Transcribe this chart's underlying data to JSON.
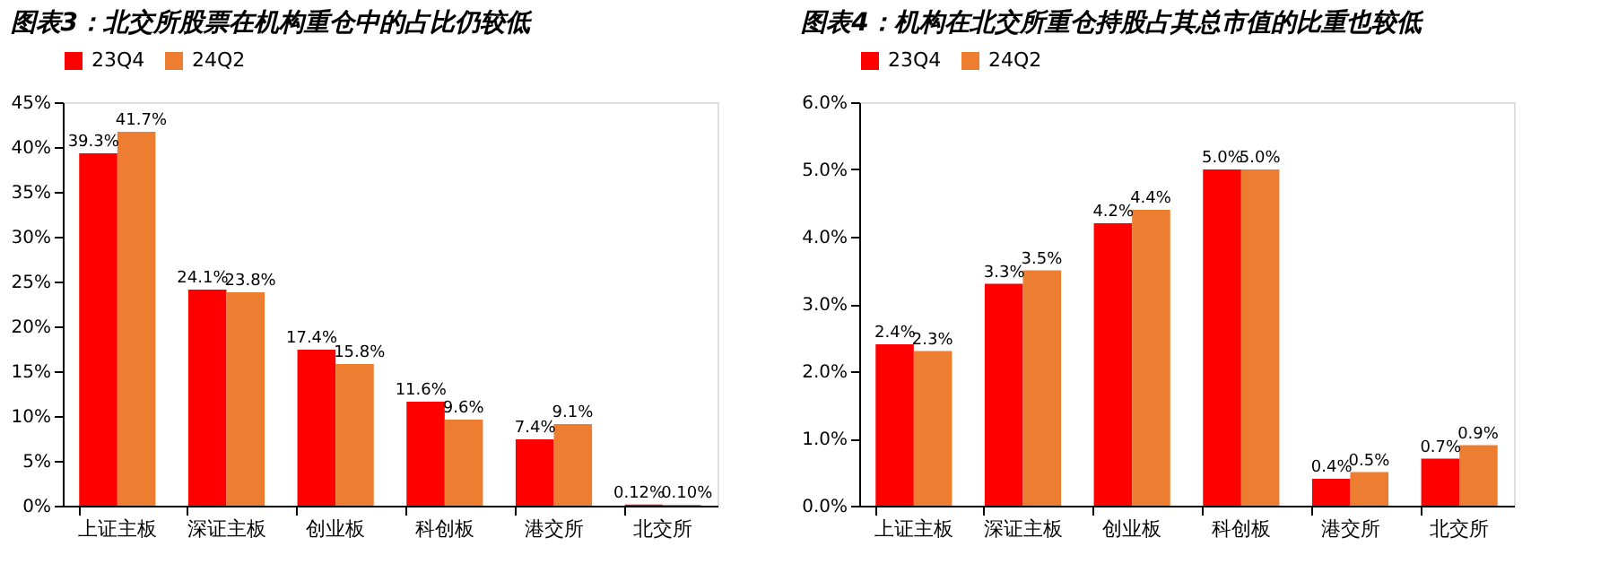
{
  "chart_data": [
    {
      "type": "bar",
      "title": "图表3：北交所股票在机构重仓中的占比仍较低",
      "categories": [
        "上证主板",
        "深证主板",
        "创业板",
        "科创板",
        "港交所",
        "北交所"
      ],
      "legend": "top",
      "ylim": [
        0,
        45
      ],
      "yticks": [
        {
          "value": 0,
          "label": "0%"
        },
        {
          "value": 5,
          "label": "5%"
        },
        {
          "value": 10,
          "label": "10%"
        },
        {
          "value": 15,
          "label": "15%"
        },
        {
          "value": 20,
          "label": "20%"
        },
        {
          "value": 25,
          "label": "25%"
        },
        {
          "value": 30,
          "label": "30%"
        },
        {
          "value": 35,
          "label": "35%"
        },
        {
          "value": 40,
          "label": "40%"
        },
        {
          "value": 45,
          "label": "45%"
        }
      ],
      "series": [
        {
          "name": "23Q4",
          "color": "#ff0000",
          "values": [
            39.3,
            24.1,
            17.4,
            11.6,
            7.4,
            0.12
          ],
          "value_labels": [
            "39.3%",
            "24.1%",
            "17.4%",
            "11.6%",
            "7.4%",
            "0.12%"
          ]
        },
        {
          "name": "24Q2",
          "color": "#ed7d31",
          "values": [
            41.7,
            23.8,
            15.8,
            9.6,
            9.1,
            0.1
          ],
          "value_labels": [
            "41.7%",
            "23.8%",
            "15.8%",
            "9.6%",
            "9.1%",
            "0.10%"
          ]
        }
      ]
    },
    {
      "type": "bar",
      "title": "图表4：机构在北交所重仓持股占其总市值的比重也较低",
      "categories": [
        "上证主板",
        "深证主板",
        "创业板",
        "科创板",
        "港交所",
        "北交所"
      ],
      "legend": "top",
      "ylim": [
        0,
        6
      ],
      "yticks": [
        {
          "value": 0,
          "label": "0.0%"
        },
        {
          "value": 1,
          "label": "1.0%"
        },
        {
          "value": 2,
          "label": "2.0%"
        },
        {
          "value": 3,
          "label": "3.0%"
        },
        {
          "value": 4,
          "label": "4.0%"
        },
        {
          "value": 5,
          "label": "5.0%"
        },
        {
          "value": 6,
          "label": "6.0%"
        }
      ],
      "series": [
        {
          "name": "23Q4",
          "color": "#ff0000",
          "values": [
            2.4,
            3.3,
            4.2,
            5.0,
            0.4,
            0.7
          ],
          "value_labels": [
            "2.4%",
            "3.3%",
            "4.2%",
            "5.0%",
            "0.4%",
            "0.7%"
          ]
        },
        {
          "name": "24Q2",
          "color": "#ed7d31",
          "values": [
            2.3,
            3.5,
            4.4,
            5.0,
            0.5,
            0.9
          ],
          "value_labels": [
            "2.3%",
            "3.5%",
            "4.4%",
            "5.0%",
            "0.5%",
            "0.9%"
          ]
        }
      ]
    }
  ]
}
